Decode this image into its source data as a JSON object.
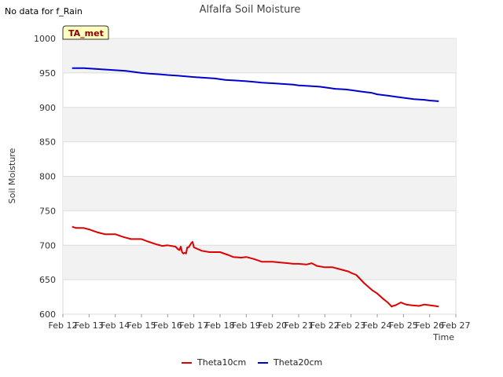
{
  "chart_data": {
    "type": "line",
    "title": "Alfalfa Soil Moisture",
    "xlabel": "Time",
    "ylabel": "Soil Moisture",
    "note": "No data for f_Rain",
    "badge": "TA_met",
    "xlim": [
      12,
      27
    ],
    "ylim": [
      600,
      1000
    ],
    "x_ticks": [
      12,
      13,
      14,
      15,
      16,
      17,
      18,
      19,
      20,
      21,
      22,
      23,
      24,
      25,
      26,
      27
    ],
    "x_tick_labels": [
      "Feb 12",
      "Feb 13",
      "Feb 14",
      "Feb 15",
      "Feb 16",
      "Feb 17",
      "Feb 18",
      "Feb 19",
      "Feb 20",
      "Feb 21",
      "Feb 22",
      "Feb 23",
      "Feb 24",
      "Feb 25",
      "Feb 26",
      "Feb 27"
    ],
    "y_ticks": [
      600,
      650,
      700,
      750,
      800,
      850,
      900,
      950,
      1000
    ],
    "y_tick_labels": [
      "600",
      "650",
      "700",
      "750",
      "800",
      "850",
      "900",
      "950",
      "1000"
    ],
    "series": [
      {
        "name": "Theta10cm",
        "color": "#dd0000",
        "x": [
          12.35,
          12.5,
          12.8,
          13.0,
          13.3,
          13.6,
          14.0,
          14.3,
          14.6,
          15.0,
          15.2,
          15.6,
          15.8,
          16.0,
          16.3,
          16.4,
          16.45,
          16.5,
          16.55,
          16.6,
          16.65,
          16.7,
          16.75,
          16.8,
          16.85,
          16.9,
          16.95,
          17.0,
          17.3,
          17.6,
          18.0,
          18.3,
          18.5,
          18.8,
          19.0,
          19.3,
          19.6,
          20.0,
          20.3,
          20.6,
          20.8,
          21.0,
          21.3,
          21.5,
          21.7,
          22.0,
          22.3,
          22.6,
          22.9,
          23.0,
          23.2,
          23.5,
          23.8,
          24.0,
          24.2,
          24.4,
          24.5,
          24.55,
          24.6,
          24.7,
          24.9,
          25.1,
          25.3,
          25.6,
          25.8,
          26.0,
          26.2,
          26.35
        ],
        "values": [
          727,
          725,
          725,
          723,
          719,
          716,
          716,
          712,
          709,
          709,
          706,
          701,
          699,
          700,
          698,
          694,
          693,
          698,
          690,
          688,
          689,
          688,
          697,
          697,
          700,
          703,
          705,
          697,
          692,
          690,
          690,
          686,
          683,
          682,
          683,
          680,
          676,
          676,
          675,
          674,
          673,
          673,
          672,
          674,
          670,
          668,
          668,
          665,
          662,
          660,
          657,
          645,
          635,
          630,
          623,
          617,
          613,
          611,
          612,
          613,
          617,
          614,
          613,
          612,
          614,
          613,
          612,
          611
        ]
      },
      {
        "name": "Theta20cm",
        "color": "#0000cc",
        "x": [
          12.35,
          12.8,
          13.2,
          13.6,
          14.0,
          14.4,
          14.8,
          15.0,
          15.3,
          15.7,
          16.0,
          16.4,
          16.7,
          17.0,
          17.4,
          17.8,
          18.2,
          18.6,
          19.0,
          19.3,
          19.6,
          20.0,
          20.4,
          20.8,
          21.0,
          21.4,
          21.8,
          22.0,
          22.4,
          22.8,
          23.0,
          23.4,
          23.8,
          24.0,
          24.4,
          24.8,
          25.0,
          25.4,
          25.8,
          26.0,
          26.35
        ],
        "values": [
          957,
          957,
          956,
          955,
          954,
          953,
          951,
          950,
          949,
          948,
          947,
          946,
          945,
          944,
          943,
          942,
          940,
          939,
          938,
          937,
          936,
          935,
          934,
          933,
          932,
          931,
          930,
          929,
          927,
          926,
          925,
          923,
          921,
          919,
          917,
          915,
          914,
          912,
          911,
          910,
          909
        ]
      }
    ]
  }
}
